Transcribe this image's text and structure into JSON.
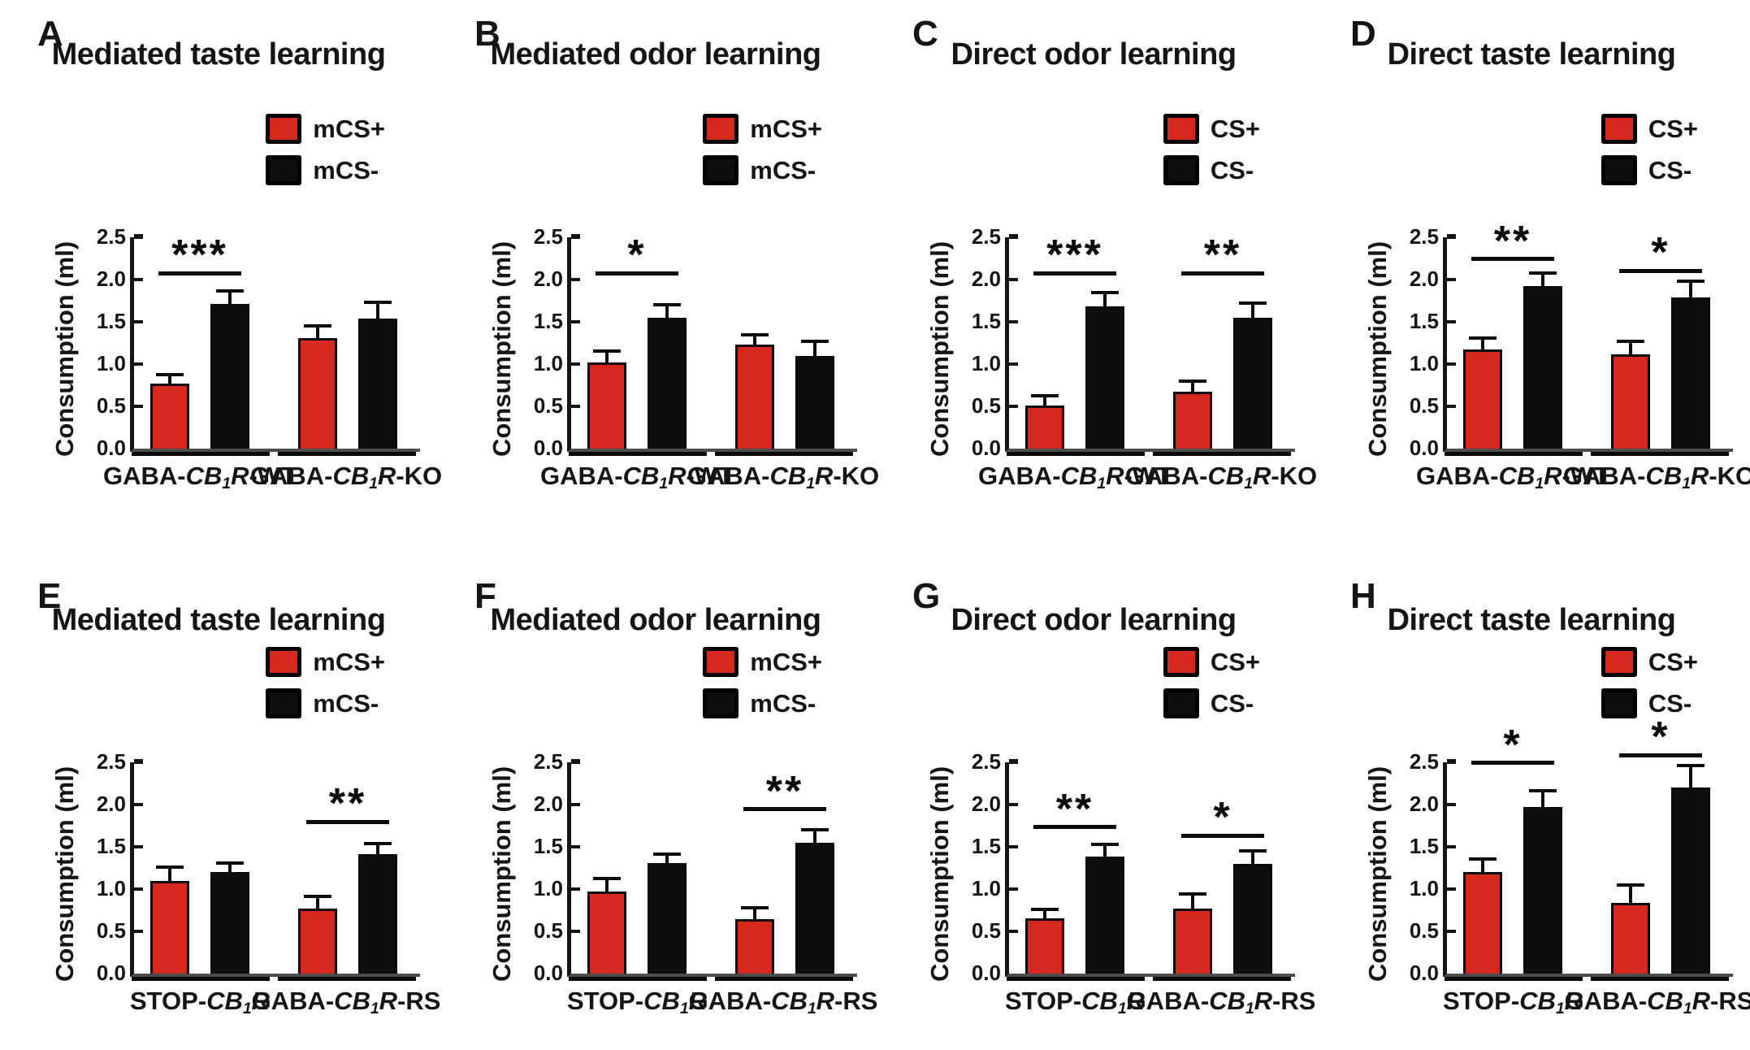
{
  "styles": {
    "red": "#d5291f",
    "black": "#0e0e0e",
    "axis_color": "#151515",
    "baseline_color": "#4d4d4d",
    "background": "#ffffff"
  },
  "ylabel": "Consumption (ml)",
  "chart_data": [
    {
      "id": "A",
      "type": "bar",
      "title": "Mediated taste learning",
      "ylabel": "Consumption (ml)",
      "ylim": [
        0,
        2.5
      ],
      "yticks": [
        "0.0",
        "0.5",
        "1.0",
        "1.5",
        "2.0",
        "2.5"
      ],
      "legend": [
        {
          "label": "mCS+",
          "color_key": "red"
        },
        {
          "label": "mCS-",
          "color_key": "black"
        }
      ],
      "categories": [
        "GABA-CB1R-WT",
        "GABA-CB1R-KO"
      ],
      "group_labels": [
        {
          "pre": "GABA-",
          "gene": "CB",
          "sub": "1",
          "gene2": "R",
          "suffix": "-WT"
        },
        {
          "pre": "GABA-",
          "gene": "CB",
          "sub": "1",
          "gene2": "R",
          "suffix": "-KO"
        }
      ],
      "series": [
        {
          "name": "mCS+",
          "color_key": "red",
          "values": [
            0.77,
            1.31
          ],
          "errors": [
            0.09,
            0.12
          ]
        },
        {
          "name": "mCS-",
          "color_key": "black",
          "values": [
            1.71,
            1.54
          ],
          "errors": [
            0.14,
            0.17
          ]
        }
      ],
      "significance": [
        {
          "group": 0,
          "stars": "***",
          "y": 2.05
        }
      ]
    },
    {
      "id": "B",
      "type": "bar",
      "title": "Mediated odor learning",
      "ylabel": "Consumption (ml)",
      "ylim": [
        0,
        2.5
      ],
      "yticks": [
        "0.0",
        "0.5",
        "1.0",
        "1.5",
        "2.0",
        "2.5"
      ],
      "legend": [
        {
          "label": "mCS+",
          "color_key": "red"
        },
        {
          "label": "mCS-",
          "color_key": "black"
        }
      ],
      "categories": [
        "GABA-CB1R-WT",
        "GABA-CB1R-KO"
      ],
      "group_labels": [
        {
          "pre": "GABA-",
          "gene": "CB",
          "sub": "1",
          "gene2": "R",
          "suffix": "-WT"
        },
        {
          "pre": "GABA-",
          "gene": "CB",
          "sub": "1",
          "gene2": "R",
          "suffix": "-KO"
        }
      ],
      "series": [
        {
          "name": "mCS+",
          "color_key": "red",
          "values": [
            1.02,
            1.23
          ],
          "errors": [
            0.11,
            0.1
          ]
        },
        {
          "name": "mCS-",
          "color_key": "black",
          "values": [
            1.55,
            1.1
          ],
          "errors": [
            0.13,
            0.15
          ]
        }
      ],
      "significance": [
        {
          "group": 0,
          "stars": "*",
          "y": 2.05
        }
      ]
    },
    {
      "id": "C",
      "type": "bar",
      "title": "Direct odor learning",
      "ylabel": "Consumption (ml)",
      "ylim": [
        0,
        2.5
      ],
      "yticks": [
        "0.0",
        "0.5",
        "1.0",
        "1.5",
        "2.0",
        "2.5"
      ],
      "legend": [
        {
          "label": "CS+",
          "color_key": "red"
        },
        {
          "label": "CS-",
          "color_key": "black"
        }
      ],
      "categories": [
        "GABA-CB1R-WT",
        "GABA-CB1R-KO"
      ],
      "group_labels": [
        {
          "pre": "GABA-",
          "gene": "CB",
          "sub": "1",
          "gene2": "R",
          "suffix": "-WT"
        },
        {
          "pre": "GABA-",
          "gene": "CB",
          "sub": "1",
          "gene2": "R",
          "suffix": "-KO"
        }
      ],
      "series": [
        {
          "name": "CS+",
          "color_key": "red",
          "values": [
            0.51,
            0.67
          ],
          "errors": [
            0.1,
            0.11
          ]
        },
        {
          "name": "CS-",
          "color_key": "black",
          "values": [
            1.68,
            1.55
          ],
          "errors": [
            0.15,
            0.15
          ]
        }
      ],
      "significance": [
        {
          "group": 0,
          "stars": "***",
          "y": 2.05
        },
        {
          "group": 1,
          "stars": "**",
          "y": 2.05
        }
      ]
    },
    {
      "id": "D",
      "type": "bar",
      "title": "Direct taste learning",
      "ylabel": "Consumption (ml)",
      "ylim": [
        0,
        2.5
      ],
      "yticks": [
        "0.0",
        "0.5",
        "1.0",
        "1.5",
        "2.0",
        "2.5"
      ],
      "legend": [
        {
          "label": "CS+",
          "color_key": "red"
        },
        {
          "label": "CS-",
          "color_key": "black"
        }
      ],
      "categories": [
        "GABA-CB1R-WT",
        "GABA-CB1R-KO"
      ],
      "group_labels": [
        {
          "pre": "GABA-",
          "gene": "CB",
          "sub": "1",
          "gene2": "R",
          "suffix": "-WT"
        },
        {
          "pre": "GABA-",
          "gene": "CB",
          "sub": "1",
          "gene2": "R",
          "suffix": "-KO"
        }
      ],
      "series": [
        {
          "name": "CS+",
          "color_key": "red",
          "values": [
            1.17,
            1.12
          ],
          "errors": [
            0.12,
            0.13
          ]
        },
        {
          "name": "CS-",
          "color_key": "black",
          "values": [
            1.92,
            1.79
          ],
          "errors": [
            0.14,
            0.17
          ]
        }
      ],
      "significance": [
        {
          "group": 0,
          "stars": "**",
          "y": 2.22
        },
        {
          "group": 1,
          "stars": "*",
          "y": 2.08
        }
      ]
    },
    {
      "id": "E",
      "type": "bar",
      "title": "Mediated taste learning",
      "ylabel": "Consumption (ml)",
      "ylim": [
        0,
        2.5
      ],
      "yticks": [
        "0.0",
        "0.5",
        "1.0",
        "1.5",
        "2.0",
        "2.5"
      ],
      "legend": [
        {
          "label": "mCS+",
          "color_key": "red"
        },
        {
          "label": "mCS-",
          "color_key": "black"
        }
      ],
      "categories": [
        "STOP-CB1R",
        "GABA-CB1R-RS"
      ],
      "group_labels": [
        {
          "pre": "STOP-",
          "gene": "CB",
          "sub": "1",
          "gene2": "R",
          "suffix": ""
        },
        {
          "pre": "GABA-",
          "gene": "CB",
          "sub": "1",
          "gene2": "R",
          "suffix": "-RS"
        }
      ],
      "series": [
        {
          "name": "mCS+",
          "color_key": "red",
          "values": [
            1.1,
            0.77
          ],
          "errors": [
            0.14,
            0.12
          ]
        },
        {
          "name": "mCS-",
          "color_key": "black",
          "values": [
            1.2,
            1.41
          ],
          "errors": [
            0.09,
            0.11
          ]
        }
      ],
      "significance": [
        {
          "group": 1,
          "stars": "**",
          "y": 1.77
        }
      ]
    },
    {
      "id": "F",
      "type": "bar",
      "title": "Mediated odor learning",
      "ylabel": "Consumption (ml)",
      "ylim": [
        0,
        2.5
      ],
      "yticks": [
        "0.0",
        "0.5",
        "1.0",
        "1.5",
        "2.0",
        "2.5"
      ],
      "legend": [
        {
          "label": "mCS+",
          "color_key": "red"
        },
        {
          "label": "mCS-",
          "color_key": "black"
        }
      ],
      "categories": [
        "STOP-CB1R",
        "GABA-CB1R-RS"
      ],
      "group_labels": [
        {
          "pre": "STOP-",
          "gene": "CB",
          "sub": "1",
          "gene2": "R",
          "suffix": ""
        },
        {
          "pre": "GABA-",
          "gene": "CB",
          "sub": "1",
          "gene2": "R",
          "suffix": "-RS"
        }
      ],
      "series": [
        {
          "name": "mCS+",
          "color_key": "red",
          "values": [
            0.97,
            0.64
          ],
          "errors": [
            0.14,
            0.12
          ]
        },
        {
          "name": "mCS-",
          "color_key": "black",
          "values": [
            1.31,
            1.55
          ],
          "errors": [
            0.08,
            0.13
          ]
        }
      ],
      "significance": [
        {
          "group": 1,
          "stars": "**",
          "y": 1.92
        }
      ]
    },
    {
      "id": "G",
      "type": "bar",
      "title": "Direct odor learning",
      "ylabel": "Consumption (ml)",
      "ylim": [
        0,
        2.5
      ],
      "yticks": [
        "0.0",
        "0.5",
        "1.0",
        "1.5",
        "2.0",
        "2.5"
      ],
      "legend": [
        {
          "label": "CS+",
          "color_key": "red"
        },
        {
          "label": "CS-",
          "color_key": "black"
        }
      ],
      "categories": [
        "STOP-CB1R",
        "GABA-CB1R-RS"
      ],
      "group_labels": [
        {
          "pre": "STOP-",
          "gene": "CB",
          "sub": "1",
          "gene2": "R",
          "suffix": ""
        },
        {
          "pre": "GABA-",
          "gene": "CB",
          "sub": "1",
          "gene2": "R",
          "suffix": "-RS"
        }
      ],
      "series": [
        {
          "name": "CS+",
          "color_key": "red",
          "values": [
            0.65,
            0.77
          ],
          "errors": [
            0.09,
            0.15
          ]
        },
        {
          "name": "CS-",
          "color_key": "black",
          "values": [
            1.38,
            1.3
          ],
          "errors": [
            0.13,
            0.13
          ]
        }
      ],
      "significance": [
        {
          "group": 0,
          "stars": "**",
          "y": 1.71
        },
        {
          "group": 1,
          "stars": "*",
          "y": 1.61
        }
      ]
    },
    {
      "id": "H",
      "type": "bar",
      "title": "Direct taste learning",
      "ylabel": "Consumption (ml)",
      "ylim": [
        0,
        2.5
      ],
      "yticks": [
        "0.0",
        "0.5",
        "1.0",
        "1.5",
        "2.0",
        "2.5"
      ],
      "legend": [
        {
          "label": "CS+",
          "color_key": "red"
        },
        {
          "label": "CS-",
          "color_key": "black"
        }
      ],
      "categories": [
        "STOP-CB1R",
        "GABA-CB1R-RS"
      ],
      "group_labels": [
        {
          "pre": "STOP-",
          "gene": "CB",
          "sub": "1",
          "gene2": "R",
          "suffix": ""
        },
        {
          "pre": "GABA-",
          "gene": "CB",
          "sub": "1",
          "gene2": "R",
          "suffix": "-RS"
        }
      ],
      "series": [
        {
          "name": "CS+",
          "color_key": "red",
          "values": [
            1.2,
            0.84
          ],
          "errors": [
            0.14,
            0.19
          ]
        },
        {
          "name": "CS-",
          "color_key": "black",
          "values": [
            1.97,
            2.2
          ],
          "errors": [
            0.17,
            0.24
          ]
        }
      ],
      "significance": [
        {
          "group": 0,
          "stars": "*",
          "y": 2.47
        },
        {
          "group": 1,
          "stars": "*",
          "y": 2.56
        }
      ]
    }
  ]
}
